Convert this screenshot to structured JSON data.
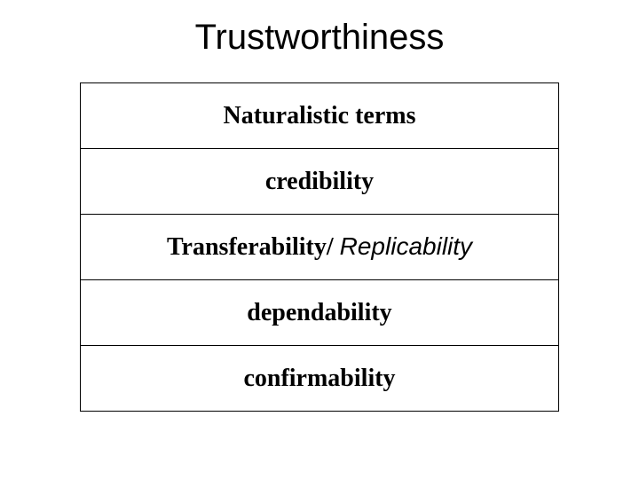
{
  "slide": {
    "title": "Trustworthiness",
    "table": {
      "header": "Naturalistic terms",
      "rows": [
        {
          "text": "credibility",
          "style": "serif-bold"
        },
        {
          "text_part1": "Transferability/",
          "text_part2": "Replicability",
          "style": "mixed"
        },
        {
          "text": "dependability",
          "style": "serif-bold"
        },
        {
          "text": "confirmability",
          "style": "serif-bold"
        }
      ]
    },
    "colors": {
      "background": "#ffffff",
      "text": "#000000",
      "border": "#000000"
    },
    "fonts": {
      "title_family": "Arial",
      "title_size": 40,
      "cell_family": "Times New Roman",
      "cell_size": 28
    }
  }
}
